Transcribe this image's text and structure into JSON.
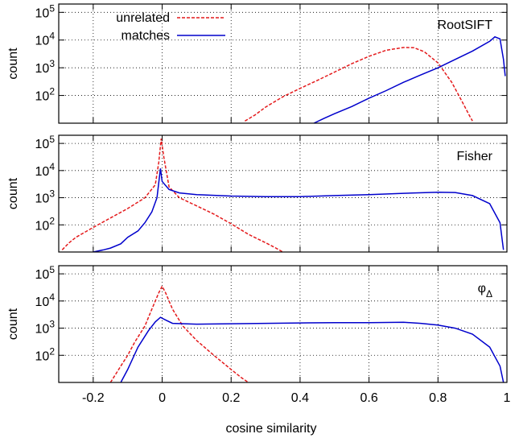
{
  "chart_data": [
    {
      "type": "line",
      "panel_label": "RootSIFT",
      "ylabel": "count",
      "yscale": "log",
      "ylim": [
        10,
        100000
      ],
      "yticks": [
        {
          "v": 100,
          "e": "2"
        },
        {
          "v": 1000,
          "e": "3"
        },
        {
          "v": 10000,
          "e": "4"
        },
        {
          "v": 100000,
          "e": "5"
        }
      ],
      "grid": true,
      "legend": {
        "placement": "top-left",
        "entries": [
          {
            "label": "unrelated",
            "color": "#e41a1c",
            "dash": true
          },
          {
            "label": "matches",
            "color": "#0000cc",
            "dash": false
          }
        ]
      },
      "series": [
        {
          "name": "unrelated",
          "color": "#e41a1c",
          "dash": true,
          "points": [
            [
              0.24,
              12
            ],
            [
              0.27,
              20
            ],
            [
              0.3,
              38
            ],
            [
              0.35,
              90
            ],
            [
              0.4,
              180
            ],
            [
              0.45,
              350
            ],
            [
              0.5,
              700
            ],
            [
              0.55,
              1400
            ],
            [
              0.6,
              2600
            ],
            [
              0.65,
              4300
            ],
            [
              0.7,
              5400
            ],
            [
              0.73,
              5300
            ],
            [
              0.76,
              3800
            ],
            [
              0.8,
              1500
            ],
            [
              0.84,
              300
            ],
            [
              0.87,
              60
            ],
            [
              0.89,
              20
            ],
            [
              0.9,
              12
            ]
          ]
        },
        {
          "name": "matches",
          "color": "#0000cc",
          "dash": false,
          "points": [
            [
              0.44,
              10
            ],
            [
              0.47,
              15
            ],
            [
              0.5,
              22
            ],
            [
              0.55,
              40
            ],
            [
              0.6,
              80
            ],
            [
              0.65,
              150
            ],
            [
              0.7,
              300
            ],
            [
              0.75,
              550
            ],
            [
              0.8,
              1000
            ],
            [
              0.85,
              2000
            ],
            [
              0.9,
              4000
            ],
            [
              0.95,
              9000
            ],
            [
              0.965,
              13000
            ],
            [
              0.98,
              11000
            ],
            [
              0.99,
              2000
            ],
            [
              0.995,
              500
            ]
          ]
        }
      ]
    },
    {
      "type": "line",
      "panel_label": "Fisher",
      "ylabel": "count",
      "yscale": "log",
      "ylim": [
        10,
        100000
      ],
      "yticks": [
        {
          "v": 100,
          "e": "2"
        },
        {
          "v": 1000,
          "e": "3"
        },
        {
          "v": 10000,
          "e": "4"
        },
        {
          "v": 100000,
          "e": "5"
        }
      ],
      "grid": true,
      "series": [
        {
          "name": "unrelated",
          "color": "#e41a1c",
          "dash": true,
          "points": [
            [
              -0.29,
              12
            ],
            [
              -0.27,
              22
            ],
            [
              -0.25,
              35
            ],
            [
              -0.2,
              80
            ],
            [
              -0.15,
              180
            ],
            [
              -0.1,
              400
            ],
            [
              -0.05,
              1000
            ],
            [
              -0.02,
              3000
            ],
            [
              -0.01,
              20000
            ],
            [
              -0.003,
              150000
            ],
            [
              0.005,
              30000
            ],
            [
              0.02,
              2500
            ],
            [
              0.05,
              1000
            ],
            [
              0.1,
              500
            ],
            [
              0.15,
              250
            ],
            [
              0.2,
              110
            ],
            [
              0.25,
              45
            ],
            [
              0.3,
              22
            ],
            [
              0.33,
              14
            ],
            [
              0.35,
              10
            ]
          ]
        },
        {
          "name": "matches",
          "color": "#0000cc",
          "dash": false,
          "points": [
            [
              -0.2,
              10
            ],
            [
              -0.17,
              12
            ],
            [
              -0.15,
              14
            ],
            [
              -0.12,
              20
            ],
            [
              -0.1,
              35
            ],
            [
              -0.07,
              60
            ],
            [
              -0.05,
              120
            ],
            [
              -0.03,
              300
            ],
            [
              -0.015,
              1000
            ],
            [
              -0.005,
              12000
            ],
            [
              0.0,
              4000
            ],
            [
              0.02,
              2000
            ],
            [
              0.05,
              1500
            ],
            [
              0.1,
              1300
            ],
            [
              0.2,
              1150
            ],
            [
              0.3,
              1100
            ],
            [
              0.4,
              1100
            ],
            [
              0.5,
              1200
            ],
            [
              0.6,
              1300
            ],
            [
              0.7,
              1450
            ],
            [
              0.8,
              1600
            ],
            [
              0.85,
              1550
            ],
            [
              0.9,
              1200
            ],
            [
              0.95,
              600
            ],
            [
              0.98,
              120
            ],
            [
              0.99,
              12
            ]
          ]
        }
      ]
    },
    {
      "type": "line",
      "panel_label": "φ",
      "panel_label_sub": "Δ",
      "ylabel": "count",
      "xlabel": "cosine similarity",
      "yscale": "log",
      "ylim": [
        10,
        100000
      ],
      "xlim": [
        -0.3,
        1.0
      ],
      "xticks": [
        "-0.2",
        "0",
        "0.2",
        "0.4",
        "0.6",
        "0.8",
        "1"
      ],
      "yticks": [
        {
          "v": 100,
          "e": "2"
        },
        {
          "v": 1000,
          "e": "3"
        },
        {
          "v": 10000,
          "e": "4"
        },
        {
          "v": 100000,
          "e": "5"
        }
      ],
      "grid": true,
      "series": [
        {
          "name": "unrelated",
          "color": "#e41a1c",
          "dash": true,
          "points": [
            [
              -0.15,
              10
            ],
            [
              -0.12,
              40
            ],
            [
              -0.1,
              100
            ],
            [
              -0.08,
              300
            ],
            [
              -0.05,
              1200
            ],
            [
              -0.03,
              5000
            ],
            [
              -0.01,
              20000
            ],
            [
              0.0,
              35000
            ],
            [
              0.01,
              20000
            ],
            [
              0.03,
              5000
            ],
            [
              0.06,
              1200
            ],
            [
              0.1,
              350
            ],
            [
              0.15,
              100
            ],
            [
              0.2,
              30
            ],
            [
              0.23,
              15
            ],
            [
              0.25,
              10
            ]
          ]
        },
        {
          "name": "matches",
          "color": "#0000cc",
          "dash": false,
          "points": [
            [
              -0.12,
              10
            ],
            [
              -0.1,
              30
            ],
            [
              -0.07,
              200
            ],
            [
              -0.04,
              800
            ],
            [
              -0.02,
              1700
            ],
            [
              -0.005,
              2500
            ],
            [
              0.01,
              2000
            ],
            [
              0.03,
              1500
            ],
            [
              0.1,
              1400
            ],
            [
              0.2,
              1450
            ],
            [
              0.3,
              1500
            ],
            [
              0.4,
              1550
            ],
            [
              0.5,
              1600
            ],
            [
              0.6,
              1600
            ],
            [
              0.7,
              1650
            ],
            [
              0.75,
              1500
            ],
            [
              0.8,
              1300
            ],
            [
              0.85,
              1000
            ],
            [
              0.9,
              600
            ],
            [
              0.95,
              200
            ],
            [
              0.98,
              40
            ],
            [
              0.99,
              10
            ]
          ]
        }
      ]
    }
  ]
}
